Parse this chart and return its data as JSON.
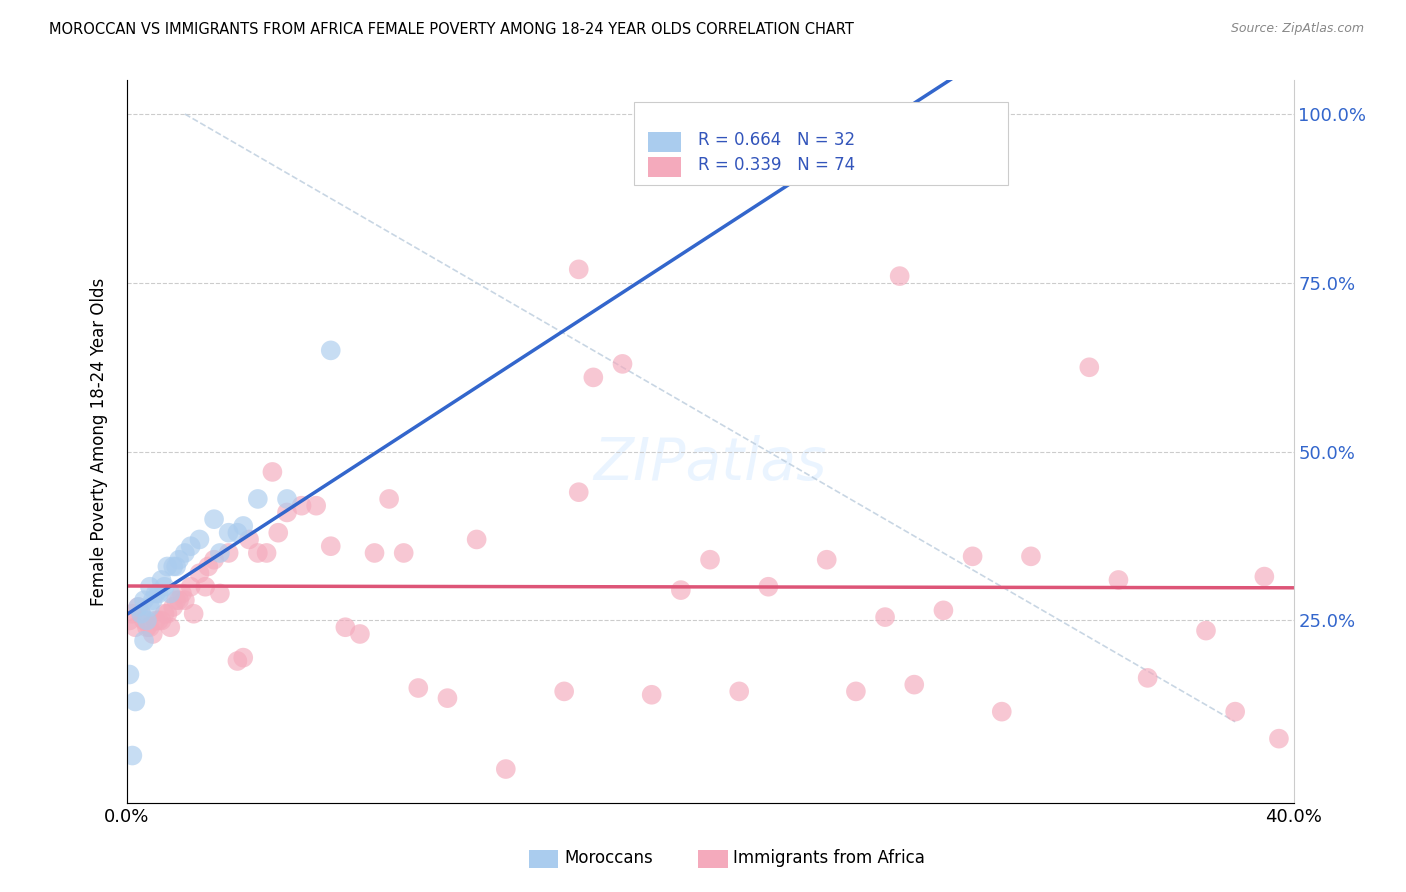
{
  "title": "MOROCCAN VS IMMIGRANTS FROM AFRICA FEMALE POVERTY AMONG 18-24 YEAR OLDS CORRELATION CHART",
  "source": "Source: ZipAtlas.com",
  "ylabel": "Female Poverty Among 18-24 Year Olds",
  "xlim": [
    0.0,
    0.4
  ],
  "ylim": [
    -0.02,
    1.05
  ],
  "blue_color": "#aaccee",
  "pink_color": "#f4aabc",
  "blue_line_color": "#3366cc",
  "pink_line_color": "#dd5577",
  "diagonal_color": "#bbccdd",
  "legend_text_color": "#3355bb",
  "moroccan_x": [
    0.001,
    0.002,
    0.003,
    0.004,
    0.005,
    0.006,
    0.006,
    0.007,
    0.008,
    0.008,
    0.009,
    0.01,
    0.011,
    0.012,
    0.013,
    0.014,
    0.015,
    0.016,
    0.017,
    0.018,
    0.02,
    0.022,
    0.025,
    0.03,
    0.032,
    0.035,
    0.038,
    0.04,
    0.045,
    0.055,
    0.07,
    0.28
  ],
  "moroccan_y": [
    0.17,
    0.05,
    0.13,
    0.27,
    0.26,
    0.22,
    0.28,
    0.25,
    0.27,
    0.3,
    0.28,
    0.29,
    0.29,
    0.31,
    0.3,
    0.33,
    0.29,
    0.33,
    0.33,
    0.34,
    0.35,
    0.36,
    0.37,
    0.4,
    0.35,
    0.38,
    0.38,
    0.39,
    0.43,
    0.43,
    0.65,
    0.96
  ],
  "africa_x": [
    0.001,
    0.002,
    0.003,
    0.004,
    0.005,
    0.006,
    0.007,
    0.008,
    0.009,
    0.01,
    0.011,
    0.012,
    0.013,
    0.014,
    0.015,
    0.016,
    0.017,
    0.018,
    0.019,
    0.02,
    0.022,
    0.023,
    0.025,
    0.027,
    0.028,
    0.03,
    0.032,
    0.035,
    0.038,
    0.04,
    0.042,
    0.045,
    0.048,
    0.05,
    0.052,
    0.055,
    0.06,
    0.065,
    0.07,
    0.075,
    0.08,
    0.085,
    0.09,
    0.095,
    0.1,
    0.11,
    0.12,
    0.13,
    0.15,
    0.155,
    0.16,
    0.17,
    0.18,
    0.19,
    0.2,
    0.21,
    0.22,
    0.24,
    0.25,
    0.26,
    0.27,
    0.28,
    0.29,
    0.3,
    0.31,
    0.33,
    0.34,
    0.35,
    0.37,
    0.38,
    0.39,
    0.395,
    0.155,
    0.265
  ],
  "africa_y": [
    0.25,
    0.26,
    0.24,
    0.27,
    0.26,
    0.25,
    0.24,
    0.24,
    0.23,
    0.25,
    0.25,
    0.25,
    0.26,
    0.26,
    0.24,
    0.27,
    0.28,
    0.28,
    0.29,
    0.28,
    0.3,
    0.26,
    0.32,
    0.3,
    0.33,
    0.34,
    0.29,
    0.35,
    0.19,
    0.195,
    0.37,
    0.35,
    0.35,
    0.47,
    0.38,
    0.41,
    0.42,
    0.42,
    0.36,
    0.24,
    0.23,
    0.35,
    0.43,
    0.35,
    0.15,
    0.135,
    0.37,
    0.03,
    0.145,
    0.77,
    0.61,
    0.63,
    0.14,
    0.295,
    0.34,
    0.145,
    0.3,
    0.34,
    0.145,
    0.255,
    0.155,
    0.265,
    0.345,
    0.115,
    0.345,
    0.625,
    0.31,
    0.165,
    0.235,
    0.115,
    0.315,
    0.075,
    0.44,
    0.76
  ]
}
